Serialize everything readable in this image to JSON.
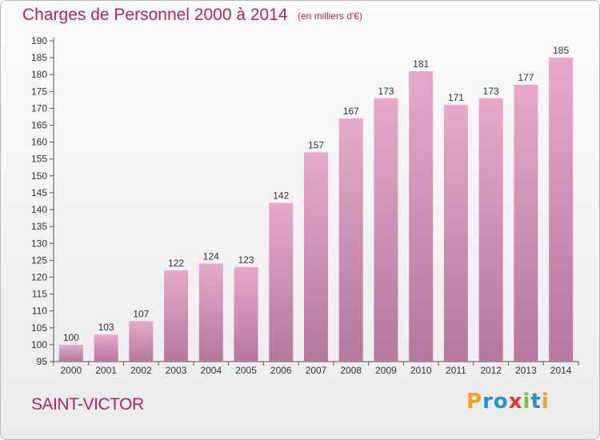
{
  "header": {
    "title": "Charges de Personnel 2000 à 2014",
    "subtitle": "(en milliers d'€)"
  },
  "footer": {
    "location": "SAINT-VICTOR",
    "logo_text": "Proxiti"
  },
  "colors": {
    "accent": "#b5235f",
    "bar_top": "#e6a9cc",
    "bar_bottom": "#b5779c"
  },
  "chart_data": {
    "type": "bar",
    "title": "Charges de Personnel 2000 à 2014",
    "subtitle": "(en milliers d'€)",
    "categories": [
      "2000",
      "2001",
      "2002",
      "2003",
      "2004",
      "2005",
      "2006",
      "2007",
      "2008",
      "2009",
      "2010",
      "2011",
      "2012",
      "2013",
      "2014"
    ],
    "values": [
      100,
      103,
      107,
      122,
      124,
      123,
      142,
      157,
      167,
      173,
      181,
      171,
      173,
      177,
      185
    ],
    "ylim": [
      95,
      190
    ],
    "yticks": [
      95,
      100,
      105,
      110,
      115,
      120,
      125,
      130,
      135,
      140,
      145,
      150,
      155,
      160,
      165,
      170,
      175,
      180,
      185,
      190
    ],
    "grid": false,
    "data_labels": true
  }
}
